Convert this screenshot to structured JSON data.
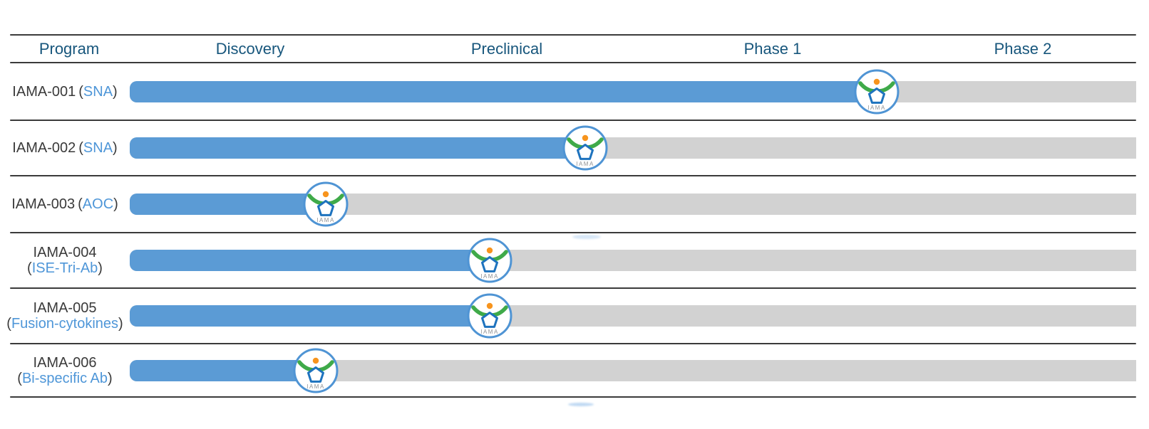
{
  "header": {
    "columns": [
      "Program",
      "Discovery",
      "Preclinical",
      "Phase 1",
      "Phase 2"
    ]
  },
  "rows": [
    {
      "program": "IAMA-001",
      "modality": "SNA",
      "current_stage": "Phase 1",
      "progress_phases": 2.97
    },
    {
      "program": "IAMA-002",
      "modality": "SNA",
      "current_stage": "Preclinical",
      "progress_phases": 1.81
    },
    {
      "program": "IAMA-003",
      "modality": "AOC",
      "current_stage": "Discovery",
      "progress_phases": 0.78
    },
    {
      "program": "IAMA-004",
      "modality": "ISE-Tri-Ab",
      "current_stage": "Preclinical",
      "progress_phases": 1.43
    },
    {
      "program": "IAMA-005",
      "modality": "Fusion-cytokines",
      "current_stage": "Preclinical",
      "progress_phases": 1.43
    },
    {
      "program": "IAMA-006",
      "modality": "Bi-specific Ab",
      "current_stage": "Discovery",
      "progress_phases": 0.74
    }
  ],
  "logo": {
    "name": "IAMA company logo",
    "text": "IAMA"
  },
  "colors": {
    "bar_blue": "#5b9bd5",
    "track_gray": "#d2d2d2",
    "header_text": "#17567c",
    "label_dark": "#3a3a3a",
    "label_blue": "#4e96d8",
    "separator": "#3b3b3b",
    "logo_ring_blue": "#4f94d4",
    "logo_green": "#3faa49",
    "logo_orange": "#f7941d",
    "logo_pentagon_blue": "#1e73be",
    "logo_text_gray": "#8f9194"
  },
  "chart_data": {
    "type": "bar",
    "subtype": "pipeline_progress_gantt",
    "orientation": "horizontal",
    "phases": [
      "Discovery",
      "Preclinical",
      "Phase 1",
      "Phase 2"
    ],
    "categories": [
      "IAMA-001 (SNA)",
      "IAMA-002 (SNA)",
      "IAMA-003 (AOC)",
      "IAMA-004 (ISE-Tri-Ab)",
      "IAMA-005 (Fusion-cytokines)",
      "IAMA-006 (Bi-specific Ab)"
    ],
    "series": [
      {
        "name": "development progress",
        "values": [
          2.97,
          1.81,
          0.78,
          1.43,
          1.43,
          0.74
        ]
      }
    ],
    "value_scale": "phases completed; 0 = start of Discovery, 4 = end of Phase 2",
    "xlim": [
      0,
      4
    ],
    "grid": false,
    "legend": false,
    "marker": "IAMA logo medallion at end of each progress bar",
    "bar_color": "#5b9bd5",
    "track_color": "#d2d2d2"
  }
}
